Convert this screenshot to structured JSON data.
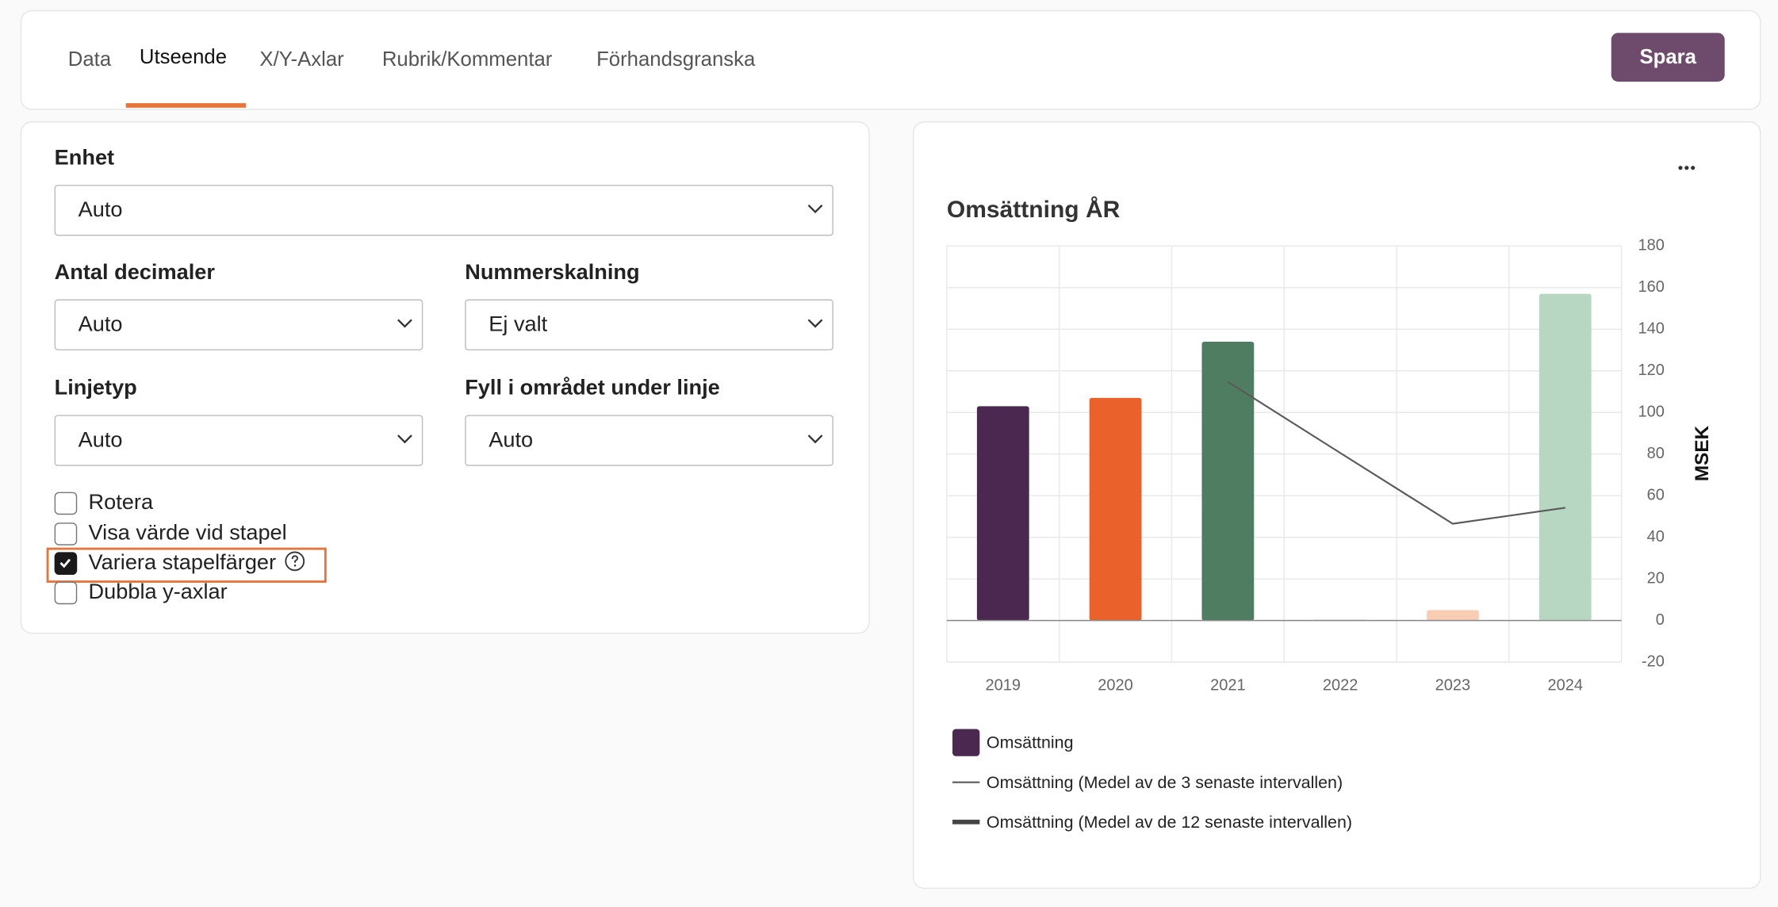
{
  "tabs": {
    "items": [
      "Data",
      "Utseende",
      "X/Y-Axlar",
      "Rubrik/Kommentar",
      "Förhandsgranska"
    ],
    "active": 1
  },
  "save_button": "Spara",
  "form": {
    "fields": [
      {
        "label": "Enhet",
        "value": "Auto"
      },
      {
        "label": "Antal decimaler",
        "value": "Auto"
      },
      {
        "label": "Nummerskalning",
        "value": "Ej valt"
      },
      {
        "label": "Linjetyp",
        "value": "Auto"
      },
      {
        "label": "Fyll i området under linje",
        "value": "Auto"
      }
    ],
    "checkboxes": [
      {
        "label": "Rotera",
        "checked": false
      },
      {
        "label": "Visa värde vid stapel",
        "checked": false
      },
      {
        "label": "Variera stapelfärger",
        "checked": true,
        "highlighted": true
      },
      {
        "label": "Dubbla y-axlar",
        "checked": false
      }
    ]
  },
  "chart_data": {
    "type": "bar",
    "title": "Omsättning ÅR",
    "y_label": "MSEK",
    "categories": [
      "2019",
      "2020",
      "2021",
      "2022",
      "2023",
      "2024"
    ],
    "series": [
      {
        "name": "Omsättning",
        "type": "bar",
        "color": "#4a2850",
        "colors": [
          "#4a2850",
          "#eb612b",
          "#4f7d62",
          "#ecd3ec",
          "#f8cdb4",
          "#b7d7c3"
        ],
        "values": [
          103,
          107,
          134,
          0.5,
          5,
          157
        ]
      },
      {
        "name": "Omsättning (Medel av de 3 senaste intervallen)",
        "type": "line",
        "color": "#5a5a5a",
        "width": 1.5,
        "values": [
          null,
          null,
          114.7,
          80.5,
          46.5,
          54.2
        ]
      },
      {
        "name": "Omsättning (Medel av de 12 senaste intervallen)",
        "type": "line",
        "color": "#444444",
        "width": 4,
        "values": [
          null,
          null,
          null,
          null,
          null,
          null
        ]
      }
    ],
    "ylim": [
      -20,
      180
    ],
    "yticks": [
      -20,
      0,
      20,
      40,
      60,
      80,
      100,
      120,
      140,
      160,
      180
    ],
    "grid": true
  }
}
